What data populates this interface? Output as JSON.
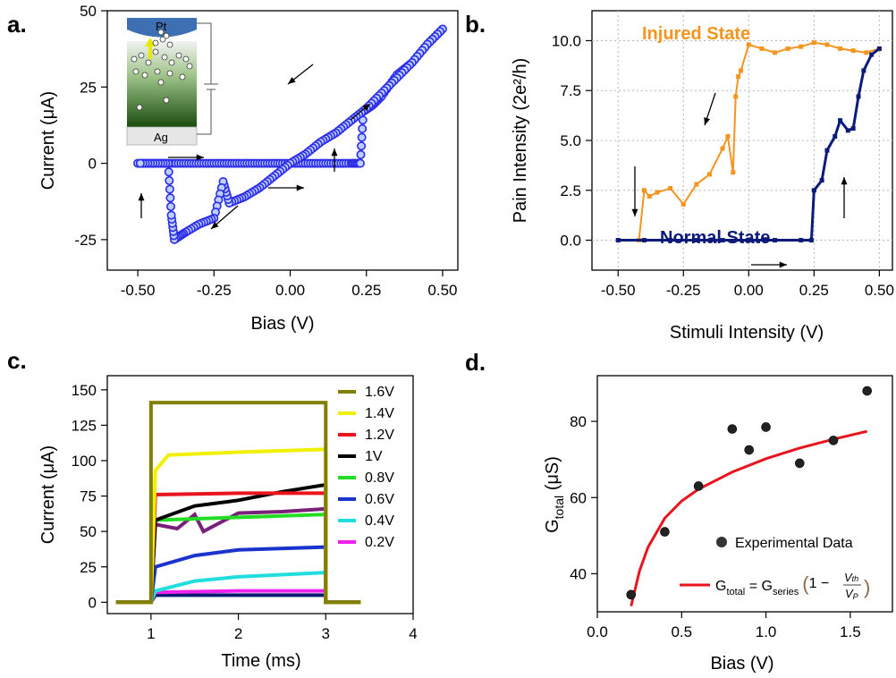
{
  "panels": {
    "a": {
      "label": "a."
    },
    "b": {
      "label": "b."
    },
    "c": {
      "label": "c."
    },
    "d": {
      "label": "d."
    }
  },
  "inset": {
    "top_label": "Pt",
    "bottom_label": "Ag"
  },
  "annotations": {
    "injured": "Injured State",
    "normal": "Normal State",
    "legend_experimental": "Experimental Data",
    "equation": {
      "lhs": "G",
      "lhs_sub": "total",
      "eq": " = G",
      "series_sub": "series",
      "one_minus": "1 − ",
      "vth": "V",
      "vth_sub": "th",
      "vp": "V",
      "vp_sub": "P"
    }
  },
  "colors": {
    "blue_marker": "#2a2ae8",
    "orange": "#f5941e",
    "navy": "#0c1a7a",
    "red_fit": "#e8141e"
  },
  "chart_data": [
    {
      "id": "a",
      "type": "line",
      "xlabel": "Bias (V)",
      "ylabel": "Current (μA)",
      "xlim": [
        -0.6,
        0.55
      ],
      "ylim": [
        -35,
        50
      ],
      "xticks": [
        -0.5,
        -0.25,
        0.0,
        0.25,
        0.5
      ],
      "xtick_labels": [
        "-0.50",
        "-0.25",
        "0.00",
        "0.25",
        "0.50"
      ],
      "yticks": [
        -25,
        0,
        25,
        50
      ],
      "ytick_labels": [
        "-25",
        "0",
        "25",
        "50"
      ],
      "series": [
        {
          "color": "#2a2ae8",
          "x": [
            -0.5,
            -0.45,
            -0.4,
            -0.35,
            -0.3,
            -0.25,
            -0.2,
            -0.15,
            -0.1,
            -0.05,
            0.0,
            0.05,
            0.1,
            0.15,
            0.2,
            0.23,
            0.24,
            0.27,
            0.3,
            0.35,
            0.4,
            0.45,
            0.5,
            0.45,
            0.4,
            0.35,
            0.3,
            0.25,
            0.2,
            0.15,
            0.1,
            0.05,
            0.0,
            -0.05,
            -0.1,
            -0.15,
            -0.2,
            -0.22,
            -0.25,
            -0.3,
            -0.35,
            -0.38,
            -0.39,
            -0.4,
            -0.45,
            -0.5
          ],
          "y": [
            0,
            0,
            0,
            0,
            0,
            0,
            0,
            0,
            0,
            0,
            0,
            0,
            0,
            0,
            0,
            0,
            17,
            19,
            22,
            29,
            33,
            39,
            44,
            39,
            33,
            28,
            23,
            18,
            14,
            10,
            7,
            3,
            0,
            -4,
            -8,
            -11,
            -13,
            -6,
            -18,
            -20,
            -23,
            -25,
            -17,
            0,
            0,
            0
          ]
        }
      ],
      "arrows": [
        "right",
        "right",
        "up",
        "up-right",
        "up-left",
        "down-left",
        "up"
      ]
    },
    {
      "id": "b",
      "type": "line",
      "xlabel": "Stimuli Intensity (V)",
      "ylabel": "Pain Intensity (2e²/h)",
      "xlim": [
        -0.6,
        0.55
      ],
      "ylim": [
        -1.5,
        11.5
      ],
      "xticks": [
        -0.5,
        -0.25,
        0.0,
        0.25,
        0.5
      ],
      "xtick_labels": [
        "-0.50",
        "-0.25",
        "0.00",
        "0.25",
        "0.50"
      ],
      "yticks": [
        0,
        2.5,
        5,
        7.5,
        10
      ],
      "ytick_labels": [
        "0.0",
        "2.5",
        "5.0",
        "7.5",
        "10.0"
      ],
      "grid": true,
      "series": [
        {
          "name": "Injured State",
          "color": "#f5941e",
          "x": [
            -0.5,
            -0.42,
            -0.4,
            -0.38,
            -0.35,
            -0.3,
            -0.25,
            -0.2,
            -0.15,
            -0.1,
            -0.08,
            -0.06,
            -0.05,
            -0.04,
            -0.03,
            0.0,
            0.05,
            0.1,
            0.15,
            0.2,
            0.25,
            0.3,
            0.35,
            0.4,
            0.45,
            0.5
          ],
          "y": [
            0,
            0,
            2.5,
            2.2,
            2.4,
            2.6,
            1.8,
            2.8,
            3.3,
            4.6,
            5.2,
            3.4,
            7.2,
            8.2,
            8.5,
            9.8,
            9.6,
            9.4,
            9.6,
            9.7,
            9.9,
            9.8,
            9.6,
            9.5,
            9.4,
            9.6
          ]
        },
        {
          "name": "Normal State",
          "color": "#0c1a7a",
          "x": [
            -0.5,
            -0.4,
            -0.3,
            -0.2,
            -0.1,
            0.0,
            0.1,
            0.2,
            0.24,
            0.25,
            0.28,
            0.3,
            0.33,
            0.35,
            0.38,
            0.4,
            0.42,
            0.44,
            0.47,
            0.5
          ],
          "y": [
            0,
            0,
            0,
            0,
            0,
            0,
            0,
            0,
            0,
            2.5,
            3.0,
            4.5,
            5.2,
            6.0,
            5.5,
            5.6,
            7.2,
            8.5,
            9.3,
            9.6
          ]
        }
      ],
      "arrows": [
        "down",
        "down-left",
        "right",
        "up"
      ]
    },
    {
      "id": "c",
      "type": "line",
      "xlabel": "Time (ms)",
      "ylabel": "Current (μA)",
      "xlim": [
        0.5,
        4.0
      ],
      "ylim": [
        -8,
        160
      ],
      "xticks": [
        1,
        2,
        3,
        4
      ],
      "xtick_labels": [
        "1",
        "2",
        "3",
        "4"
      ],
      "yticks": [
        0,
        25,
        50,
        75,
        100,
        125,
        150
      ],
      "ytick_labels": [
        "0",
        "25",
        "50",
        "75",
        "100",
        "125",
        "150"
      ],
      "series": [
        {
          "name": "1.6V",
          "color": "#808000",
          "x": [
            0.6,
            1.0,
            1.0,
            3.0,
            3.0,
            3.4
          ],
          "y": [
            0,
            0,
            141,
            141,
            0,
            0
          ]
        },
        {
          "name": "1.4V",
          "color": "#f0f000",
          "x": [
            0.6,
            1.0,
            1.05,
            1.2,
            2.0,
            3.0,
            3.0,
            3.4
          ],
          "y": [
            0,
            0,
            93,
            104,
            106,
            108,
            0,
            0
          ]
        },
        {
          "name": "1.2V",
          "color": "#e8141e",
          "x": [
            0.6,
            1.0,
            1.05,
            2.0,
            3.0,
            3.0,
            3.4
          ],
          "y": [
            0,
            0,
            76,
            77,
            77,
            0,
            0
          ]
        },
        {
          "name": "1V",
          "color": "#000000",
          "x": [
            0.6,
            1.0,
            1.05,
            1.5,
            2.0,
            2.5,
            3.0,
            3.0,
            3.4
          ],
          "y": [
            0,
            0,
            58,
            68,
            72,
            78,
            83,
            0,
            0
          ]
        },
        {
          "name": "0.8V",
          "color": "#22dd22",
          "x": [
            0.6,
            1.0,
            1.05,
            2.0,
            3.0,
            3.0,
            3.4
          ],
          "y": [
            0,
            0,
            58,
            60,
            62,
            0,
            0
          ]
        },
        {
          "name": "0.6V",
          "color": "#1a33cc",
          "x": [
            0.6,
            1.0,
            1.05,
            1.5,
            2.0,
            3.0,
            3.0,
            3.4
          ],
          "y": [
            0,
            0,
            25,
            33,
            37,
            39,
            0,
            0
          ]
        },
        {
          "name": "0.4V",
          "color": "#22dddd",
          "x": [
            0.6,
            1.0,
            1.05,
            1.5,
            2.0,
            3.0,
            3.0,
            3.4
          ],
          "y": [
            0,
            0,
            8,
            15,
            18,
            21,
            0,
            0
          ]
        },
        {
          "name": "0.2V",
          "color": "#ee22ee",
          "x": [
            0.6,
            1.0,
            1.05,
            2.0,
            3.0,
            3.0,
            3.4
          ],
          "y": [
            0,
            0,
            7,
            8,
            8,
            0,
            0
          ]
        },
        {
          "color": "#7a1f7a",
          "x": [
            0.6,
            1.0,
            1.05,
            1.3,
            1.5,
            1.6,
            2.0,
            2.5,
            3.0,
            3.0,
            3.4
          ],
          "y": [
            0,
            0,
            55,
            52,
            62,
            50,
            63,
            64,
            66,
            0,
            0
          ]
        },
        {
          "color": "#0a1a70",
          "x": [
            0.6,
            1.0,
            1.05,
            2.0,
            3.0,
            3.0,
            3.4
          ],
          "y": [
            0,
            0,
            5,
            5,
            5,
            0,
            0
          ]
        }
      ],
      "legend": [
        "1.6V",
        "1.4V",
        "1.2V",
        "1V",
        "0.8V",
        "0.6V",
        "0.4V",
        "0.2V"
      ],
      "legend_position": "right"
    },
    {
      "id": "d",
      "type": "scatter",
      "xlabel": "Bias (V)",
      "ylabel": "G_total (μS)",
      "xlim": [
        0.0,
        1.75
      ],
      "ylim": [
        30,
        92
      ],
      "xticks": [
        0.0,
        0.5,
        1.0,
        1.5
      ],
      "xtick_labels": [
        "0.0",
        "0.5",
        "1.0",
        "1.5"
      ],
      "yticks": [
        40,
        60,
        80
      ],
      "ytick_labels": [
        "40",
        "60",
        "80"
      ],
      "series": [
        {
          "name": "Experimental Data",
          "color": "#222222",
          "x": [
            0.2,
            0.4,
            0.6,
            0.8,
            0.9,
            1.0,
            1.2,
            1.4,
            1.6
          ],
          "y": [
            34.5,
            51,
            63,
            78,
            72.5,
            78.5,
            69,
            75,
            88
          ]
        },
        {
          "name": "fit",
          "color": "#e8141e",
          "type": "line",
          "x": [
            0.2,
            0.25,
            0.3,
            0.4,
            0.5,
            0.6,
            0.8,
            1.0,
            1.2,
            1.4,
            1.6
          ],
          "y": [
            31.5,
            40.7,
            46.9,
            54.6,
            59.1,
            62.2,
            66.1,
            68.4,
            70.0,
            71.1,
            72.0
          ]
        }
      ]
    }
  ]
}
